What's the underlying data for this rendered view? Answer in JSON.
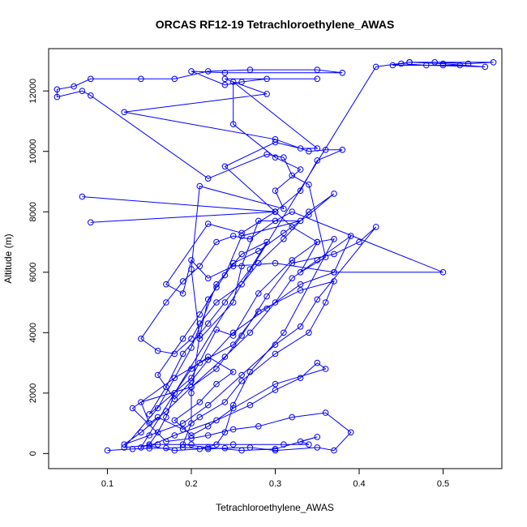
{
  "chart_data": {
    "type": "line",
    "title": "ORCAS RF12-19 Tetrachloroethylene_AWAS",
    "xlabel": "Tetrachloroethylene_AWAS",
    "ylabel": "Altitude (m)",
    "xlim": [
      0.03,
      0.57
    ],
    "ylim": [
      -500,
      13400
    ],
    "xticks": [
      0.1,
      0.2,
      0.3,
      0.4,
      0.5
    ],
    "yticks": [
      0,
      2000,
      4000,
      6000,
      8000,
      10000,
      12000
    ],
    "grid": false,
    "color": "#0000ff",
    "points": [
      [
        0.1,
        100
      ],
      [
        0.13,
        150
      ],
      [
        0.15,
        170
      ],
      [
        0.17,
        180
      ],
      [
        0.19,
        200
      ],
      [
        0.22,
        150
      ],
      [
        0.24,
        180
      ],
      [
        0.27,
        200
      ],
      [
        0.3,
        100
      ],
      [
        0.35,
        200
      ],
      [
        0.37,
        100
      ],
      [
        0.39,
        700
      ],
      [
        0.36,
        1350
      ],
      [
        0.32,
        1200
      ],
      [
        0.28,
        900
      ],
      [
        0.25,
        800
      ],
      [
        0.22,
        600
      ],
      [
        0.2,
        500
      ],
      [
        0.17,
        400
      ],
      [
        0.13,
        1500
      ],
      [
        0.18,
        2500
      ],
      [
        0.21,
        3000
      ],
      [
        0.25,
        3600
      ],
      [
        0.28,
        4700
      ],
      [
        0.33,
        5400
      ],
      [
        0.37,
        5700
      ],
      [
        0.36,
        5000
      ],
      [
        0.34,
        4000
      ],
      [
        0.3,
        3300
      ],
      [
        0.26,
        2400
      ],
      [
        0.24,
        1700
      ],
      [
        0.21,
        1200
      ],
      [
        0.19,
        800
      ],
      [
        0.16,
        1200
      ],
      [
        0.15,
        1000
      ],
      [
        0.14,
        1700
      ],
      [
        0.2,
        2200
      ],
      [
        0.23,
        2800
      ],
      [
        0.26,
        3900
      ],
      [
        0.29,
        5200
      ],
      [
        0.32,
        6300
      ],
      [
        0.37,
        6600
      ],
      [
        0.4,
        7000
      ],
      [
        0.42,
        7500
      ],
      [
        0.35,
        5100
      ],
      [
        0.33,
        4200
      ],
      [
        0.3,
        3600
      ],
      [
        0.26,
        2600
      ],
      [
        0.22,
        1600
      ],
      [
        0.19,
        1000
      ],
      [
        0.15,
        600
      ],
      [
        0.12,
        300
      ],
      [
        0.14,
        700
      ],
      [
        0.17,
        1400
      ],
      [
        0.2,
        2200
      ],
      [
        0.24,
        3200
      ],
      [
        0.27,
        4000
      ],
      [
        0.3,
        5000
      ],
      [
        0.32,
        5800
      ],
      [
        0.35,
        6400
      ],
      [
        0.39,
        7200
      ],
      [
        0.37,
        6000
      ],
      [
        0.33,
        5600
      ],
      [
        0.29,
        4800
      ],
      [
        0.25,
        4000
      ],
      [
        0.22,
        3100
      ],
      [
        0.2,
        2400
      ],
      [
        0.18,
        1800
      ],
      [
        0.16,
        2600
      ],
      [
        0.19,
        3800
      ],
      [
        0.21,
        4600
      ],
      [
        0.23,
        5500
      ],
      [
        0.25,
        6300
      ],
      [
        0.28,
        6700
      ],
      [
        0.31,
        7300
      ],
      [
        0.34,
        7900
      ],
      [
        0.37,
        8600
      ],
      [
        0.34,
        8000
      ],
      [
        0.31,
        7100
      ],
      [
        0.28,
        6300
      ],
      [
        0.26,
        5600
      ],
      [
        0.23,
        5000
      ],
      [
        0.21,
        4300
      ],
      [
        0.2,
        3800
      ],
      [
        0.18,
        3300
      ],
      [
        0.16,
        3400
      ],
      [
        0.14,
        3800
      ],
      [
        0.17,
        5000
      ],
      [
        0.19,
        5700
      ],
      [
        0.21,
        6200
      ],
      [
        0.23,
        7000
      ],
      [
        0.25,
        7200
      ],
      [
        0.27,
        7100
      ],
      [
        0.3,
        7700
      ],
      [
        0.32,
        8000
      ],
      [
        0.5,
        6000
      ],
      [
        0.37,
        6000
      ],
      [
        0.3,
        6300
      ],
      [
        0.25,
        6200
      ],
      [
        0.22,
        5800
      ],
      [
        0.2,
        6400
      ],
      [
        0.19,
        5300
      ],
      [
        0.17,
        5600
      ],
      [
        0.22,
        7600
      ],
      [
        0.26,
        7300
      ],
      [
        0.3,
        8000
      ],
      [
        0.08,
        7650
      ],
      [
        0.3,
        8000
      ],
      [
        0.07,
        8500
      ],
      [
        0.3,
        8000
      ],
      [
        0.32,
        7500
      ],
      [
        0.35,
        7000
      ],
      [
        0.33,
        6000
      ],
      [
        0.36,
        6500
      ],
      [
        0.34,
        8900
      ],
      [
        0.32,
        9200
      ],
      [
        0.31,
        9800
      ],
      [
        0.29,
        9900
      ],
      [
        0.22,
        9100
      ],
      [
        0.08,
        11850
      ],
      [
        0.07,
        12000
      ],
      [
        0.04,
        11800
      ],
      [
        0.04,
        12050
      ],
      [
        0.06,
        12150
      ],
      [
        0.08,
        12400
      ],
      [
        0.14,
        12400
      ],
      [
        0.18,
        12400
      ],
      [
        0.22,
        12650
      ],
      [
        0.27,
        12700
      ],
      [
        0.35,
        12700
      ],
      [
        0.38,
        12600
      ],
      [
        0.24,
        12600
      ],
      [
        0.2,
        12650
      ],
      [
        0.24,
        12200
      ],
      [
        0.26,
        12300
      ],
      [
        0.29,
        12400
      ],
      [
        0.35,
        12400
      ],
      [
        0.24,
        12400
      ],
      [
        0.29,
        11900
      ],
      [
        0.12,
        11300
      ],
      [
        0.3,
        10400
      ],
      [
        0.34,
        10000
      ],
      [
        0.36,
        10050
      ],
      [
        0.38,
        10050
      ],
      [
        0.35,
        9700
      ],
      [
        0.33,
        8700
      ],
      [
        0.3,
        8000
      ],
      [
        0.24,
        9500
      ],
      [
        0.3,
        10300
      ],
      [
        0.33,
        10100
      ],
      [
        0.35,
        10100
      ],
      [
        0.25,
        12300
      ],
      [
        0.25,
        10900
      ],
      [
        0.3,
        9800
      ],
      [
        0.33,
        9400
      ],
      [
        0.3,
        8700
      ],
      [
        0.31,
        8100
      ],
      [
        0.21,
        8850
      ],
      [
        0.2,
        6100
      ],
      [
        0.21,
        3800
      ],
      [
        0.25,
        5000
      ],
      [
        0.26,
        6200
      ],
      [
        0.28,
        7700
      ],
      [
        0.33,
        7700
      ],
      [
        0.26,
        7200
      ],
      [
        0.24,
        5900
      ],
      [
        0.22,
        5100
      ],
      [
        0.21,
        3900
      ],
      [
        0.2,
        2000
      ],
      [
        0.2,
        1000
      ],
      [
        0.19,
        300
      ],
      [
        0.22,
        200
      ],
      [
        0.26,
        100
      ],
      [
        0.3,
        150
      ],
      [
        0.35,
        550
      ],
      [
        0.33,
        400
      ],
      [
        0.34,
        300
      ],
      [
        0.31,
        300
      ],
      [
        0.25,
        300
      ],
      [
        0.2,
        300
      ],
      [
        0.16,
        300
      ],
      [
        0.12,
        200
      ],
      [
        0.16,
        1500
      ],
      [
        0.2,
        3500
      ],
      [
        0.23,
        5600
      ],
      [
        0.26,
        6600
      ],
      [
        0.29,
        7000
      ],
      [
        0.27,
        6100
      ],
      [
        0.24,
        5000
      ],
      [
        0.22,
        4300
      ],
      [
        0.19,
        3300
      ],
      [
        0.17,
        2200
      ],
      [
        0.15,
        1300
      ],
      [
        0.2,
        2500
      ],
      [
        0.23,
        4100
      ],
      [
        0.25,
        3900
      ],
      [
        0.28,
        5300
      ],
      [
        0.32,
        6400
      ],
      [
        0.35,
        7000
      ],
      [
        0.37,
        7100
      ],
      [
        0.31,
        4000
      ],
      [
        0.27,
        2700
      ],
      [
        0.25,
        1600
      ],
      [
        0.24,
        700
      ],
      [
        0.23,
        300
      ],
      [
        0.21,
        150
      ],
      [
        0.18,
        100
      ],
      [
        0.15,
        250
      ],
      [
        0.18,
        600
      ],
      [
        0.23,
        1100
      ],
      [
        0.27,
        1600
      ],
      [
        0.3,
        2100
      ],
      [
        0.33,
        2500
      ],
      [
        0.35,
        3000
      ],
      [
        0.36,
        2800
      ],
      [
        0.3,
        2300
      ],
      [
        0.25,
        1500
      ],
      [
        0.22,
        900
      ],
      [
        0.2,
        600
      ],
      [
        0.18,
        1100
      ],
      [
        0.21,
        1700
      ],
      [
        0.23,
        2300
      ],
      [
        0.25,
        2700
      ],
      [
        0.22,
        3200
      ],
      [
        0.2,
        2800
      ],
      [
        0.18,
        2000
      ],
      [
        0.17,
        1200
      ],
      [
        0.16,
        700
      ],
      [
        0.15,
        300
      ],
      [
        0.14,
        200
      ],
      [
        0.42,
        12800
      ],
      [
        0.46,
        12950
      ],
      [
        0.49,
        12950
      ],
      [
        0.53,
        12900
      ],
      [
        0.56,
        12950
      ],
      [
        0.46,
        12950
      ],
      [
        0.5,
        12900
      ],
      [
        0.55,
        12800
      ],
      [
        0.48,
        12850
      ],
      [
        0.45,
        12900
      ],
      [
        0.44,
        12850
      ],
      [
        0.52,
        12850
      ],
      [
        0.5,
        12850
      ]
    ]
  }
}
